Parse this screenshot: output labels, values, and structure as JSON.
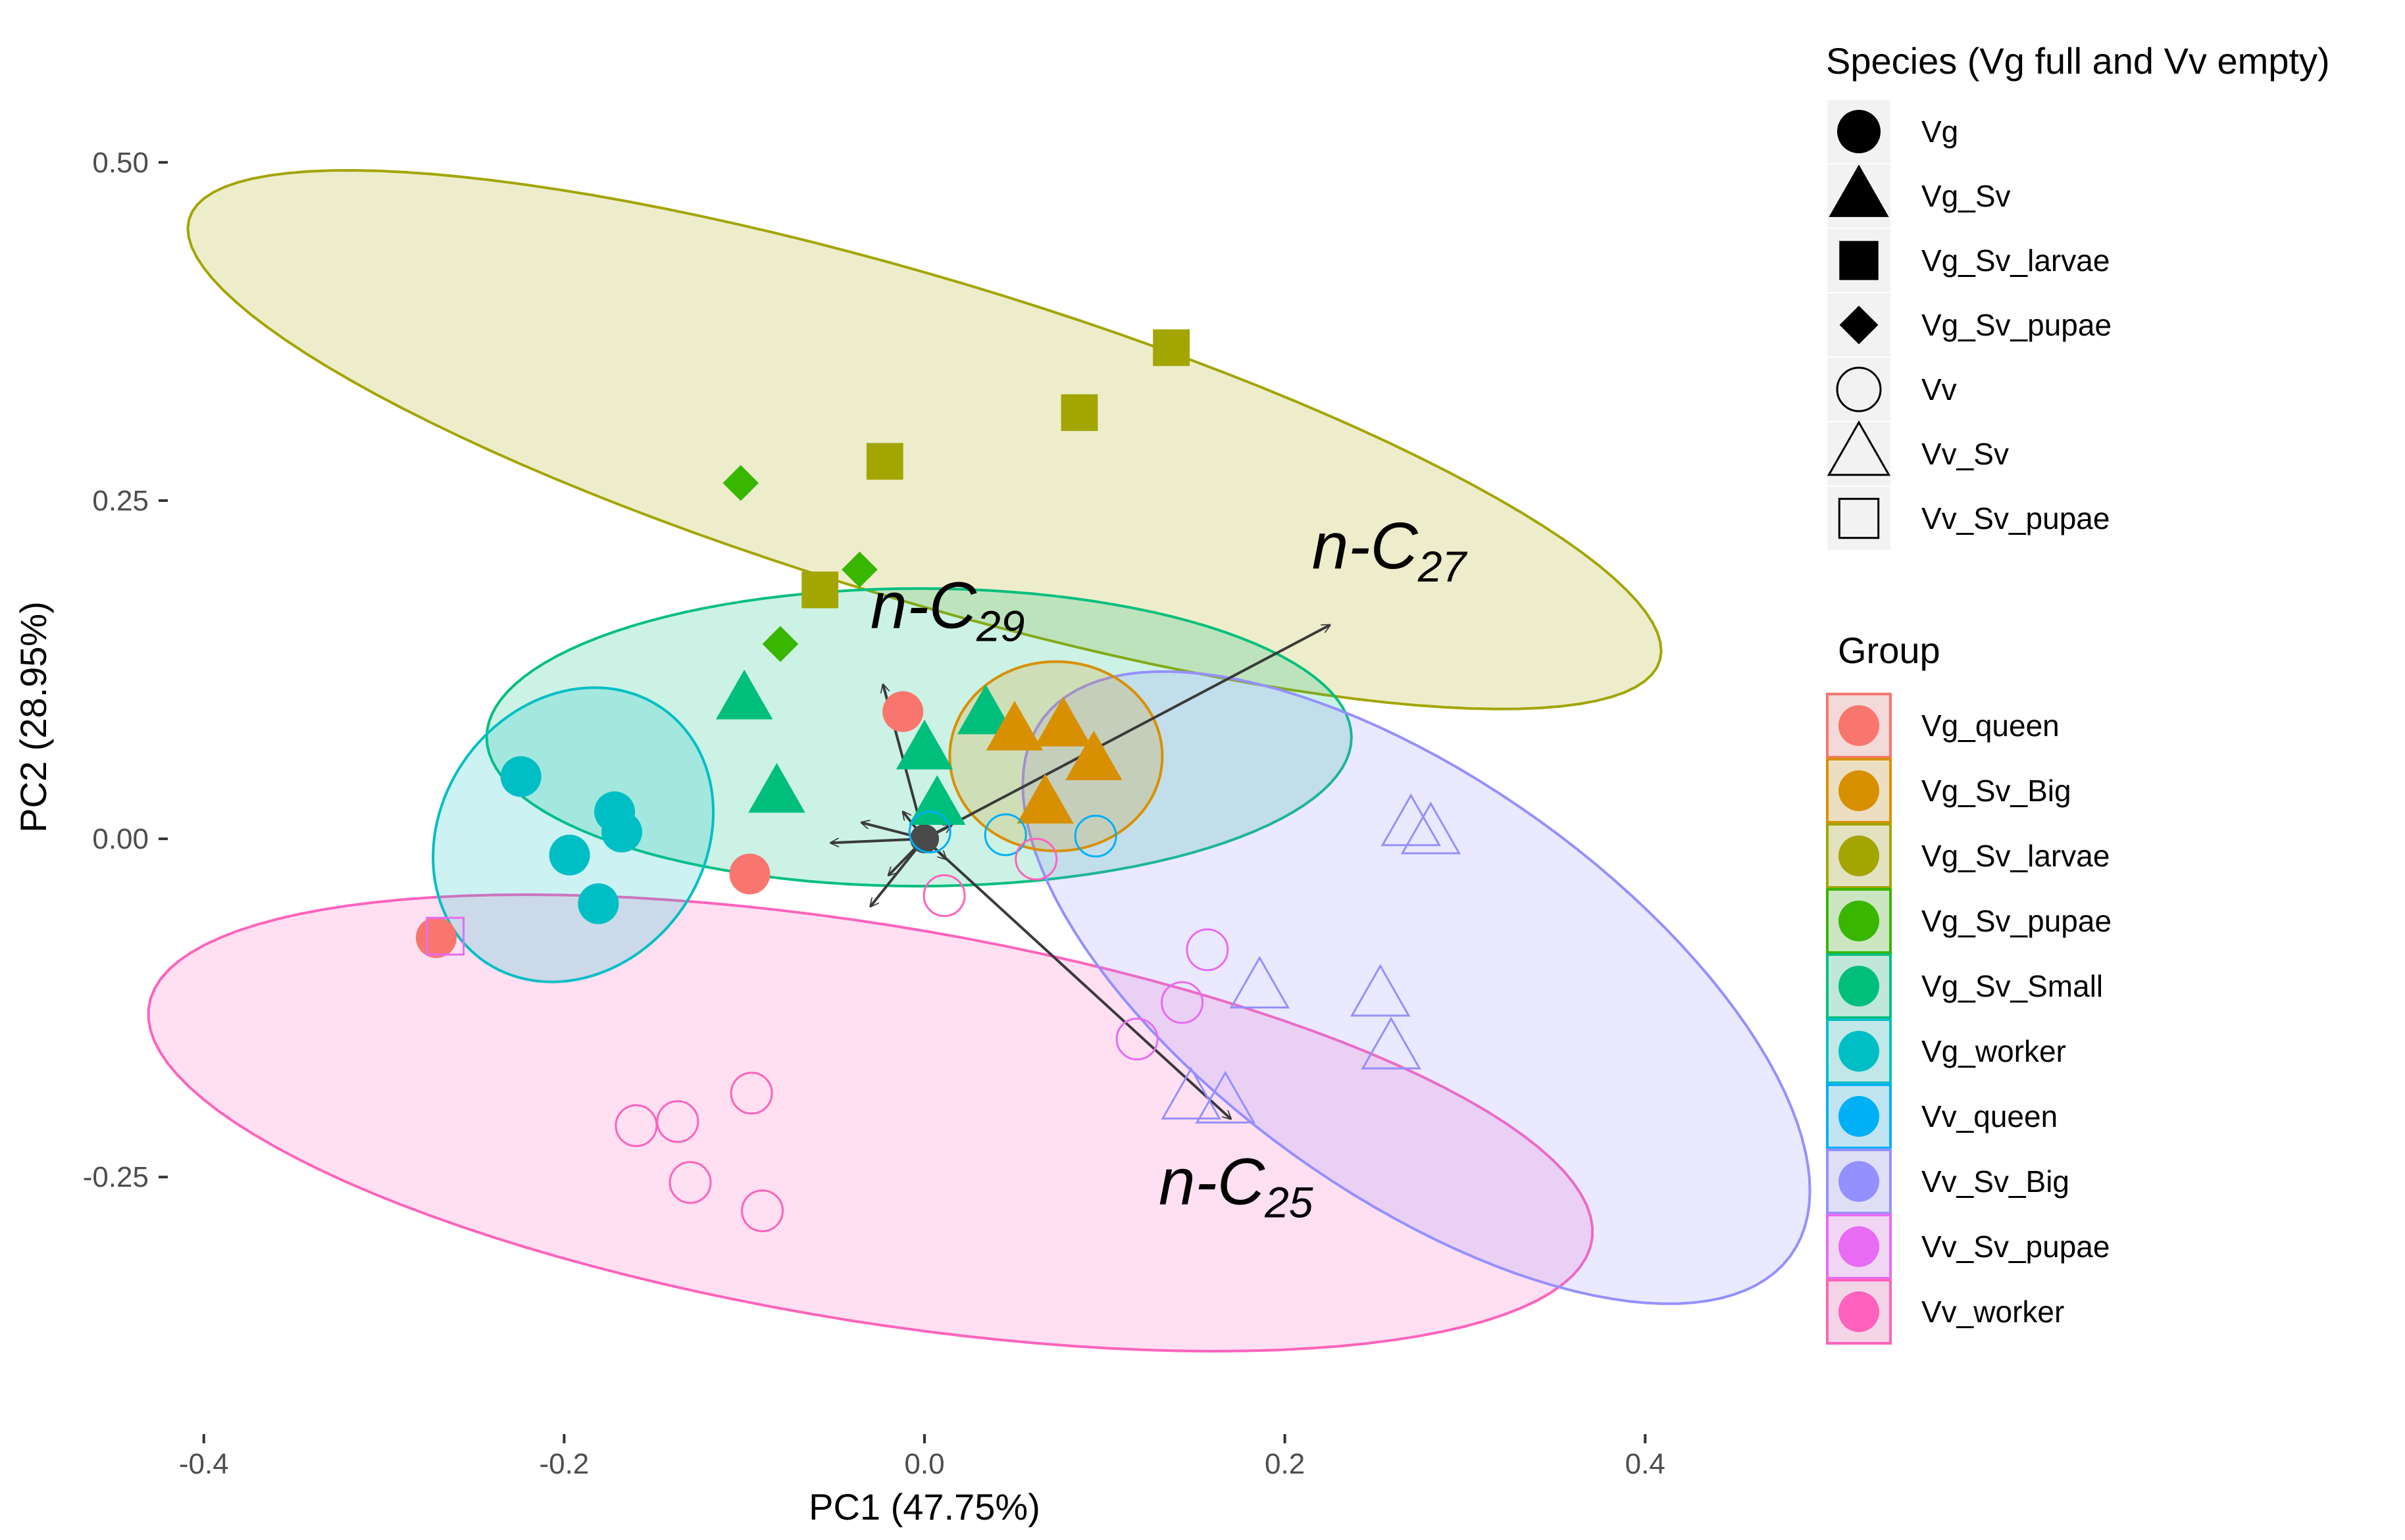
{
  "chart_data": {
    "type": "scatter",
    "subtype": "pca-biplot",
    "xlabel": "PC1 (47.75%)",
    "ylabel": "PC2 (28.95%)",
    "xlim": [
      -0.42,
      0.42
    ],
    "ylim": [
      -0.44,
      0.62
    ],
    "x_ticks": [
      {
        "value": -0.4,
        "label": "-0.4"
      },
      {
        "value": -0.2,
        "label": "-0.2"
      },
      {
        "value": 0.0,
        "label": "0.0"
      },
      {
        "value": 0.2,
        "label": "0.2"
      },
      {
        "value": 0.4,
        "label": "0.4"
      }
    ],
    "y_ticks": [
      {
        "value": 0.5,
        "label": "0.50"
      },
      {
        "value": 0.25,
        "label": "0.25"
      },
      {
        "value": 0.0,
        "label": "0.00"
      },
      {
        "value": -0.25,
        "label": "-0.25"
      }
    ],
    "grid": false,
    "legend_species": {
      "title": "Species (Vg full and Vv empty)",
      "entries": [
        {
          "label": "Vg",
          "shape": "circle",
          "filled": true
        },
        {
          "label": "Vg_Sv",
          "shape": "triangle",
          "filled": true
        },
        {
          "label": "Vg_Sv_larvae",
          "shape": "square",
          "filled": true
        },
        {
          "label": "Vg_Sv_pupae",
          "shape": "diamond",
          "filled": true
        },
        {
          "label": "Vv",
          "shape": "circle",
          "filled": false
        },
        {
          "label": "Vv_Sv",
          "shape": "triangle",
          "filled": false
        },
        {
          "label": "Vv_Sv_pupae",
          "shape": "square",
          "filled": false
        }
      ]
    },
    "legend_group": {
      "title": "Group",
      "entries": [
        {
          "label": "Vg_queen",
          "color": "#F8766D"
        },
        {
          "label": "Vg_Sv_Big",
          "color": "#D89000"
        },
        {
          "label": "Vg_Sv_larvae",
          "color": "#A3A500"
        },
        {
          "label": "Vg_Sv_pupae",
          "color": "#39B600"
        },
        {
          "label": "Vg_Sv_Small",
          "color": "#00BF7D"
        },
        {
          "label": "Vg_worker",
          "color": "#00BFC4"
        },
        {
          "label": "Vv_queen",
          "color": "#00B0F6"
        },
        {
          "label": "Vv_Sv_Big",
          "color": "#9590FF"
        },
        {
          "label": "Vv_Sv_pupae",
          "color": "#E76BF3"
        },
        {
          "label": "Vv_worker",
          "color": "#FF62BC"
        }
      ]
    },
    "ellipses": [
      {
        "group": "Vg_Sv_larvae",
        "color": "#A3A500",
        "cx": 0.0,
        "cy": 0.295,
        "rx": 0.44,
        "ry": 0.115,
        "angle_deg": -22.5
      },
      {
        "group": "Vv_worker",
        "color": "#FF62BC",
        "cx": -0.03,
        "cy": -0.21,
        "rx": 0.41,
        "ry": 0.145,
        "angle_deg": -13
      },
      {
        "group": "Vg_Sv_Small",
        "color": "#00BF7D",
        "cx": -0.003,
        "cy": 0.075,
        "rx": 0.24,
        "ry": 0.11,
        "angle_deg": 0
      },
      {
        "group": "Vv_Sv_Big",
        "color": "#9590FF",
        "cx": 0.273,
        "cy": -0.11,
        "rx": 0.29,
        "ry": 0.135,
        "angle_deg": -48
      },
      {
        "group": "Vg_worker",
        "color": "#00BFC4",
        "cx": -0.195,
        "cy": 0.003,
        "rx": 0.076,
        "ry": 0.11,
        "angle_deg": -12
      },
      {
        "group": "Vg_Sv_Big",
        "color": "#D89000",
        "cx": 0.073,
        "cy": 0.061,
        "rx": 0.059,
        "ry": 0.07,
        "angle_deg": 0
      }
    ],
    "points": [
      {
        "group": "Vg_Sv_larvae",
        "shape": "square",
        "filled": true,
        "x": 0.137,
        "y": 0.363
      },
      {
        "group": "Vg_Sv_larvae",
        "shape": "square",
        "filled": true,
        "x": 0.086,
        "y": 0.315
      },
      {
        "group": "Vg_Sv_larvae",
        "shape": "square",
        "filled": true,
        "x": -0.022,
        "y": 0.279
      },
      {
        "group": "Vg_Sv_larvae",
        "shape": "square",
        "filled": true,
        "x": -0.058,
        "y": 0.184
      },
      {
        "group": "Vg_Sv_pupae",
        "shape": "diamond",
        "filled": true,
        "x": -0.102,
        "y": 0.263
      },
      {
        "group": "Vg_Sv_pupae",
        "shape": "diamond",
        "filled": true,
        "x": -0.036,
        "y": 0.199
      },
      {
        "group": "Vg_Sv_pupae",
        "shape": "diamond",
        "filled": true,
        "x": -0.08,
        "y": 0.144
      },
      {
        "group": "Vg_Sv_Small",
        "shape": "triangle",
        "filled": true,
        "x": -0.1,
        "y": 0.103
      },
      {
        "group": "Vg_Sv_Small",
        "shape": "triangle",
        "filled": true,
        "x": -0.082,
        "y": 0.034
      },
      {
        "group": "Vg_Sv_Small",
        "shape": "triangle",
        "filled": true,
        "x": 0.0,
        "y": 0.066
      },
      {
        "group": "Vg_Sv_Small",
        "shape": "triangle",
        "filled": true,
        "x": 0.034,
        "y": 0.092
      },
      {
        "group": "Vg_Sv_Small",
        "shape": "triangle",
        "filled": true,
        "x": 0.007,
        "y": 0.025
      },
      {
        "group": "Vg_Sv_Big",
        "shape": "triangle",
        "filled": true,
        "x": 0.05,
        "y": 0.08
      },
      {
        "group": "Vg_Sv_Big",
        "shape": "triangle",
        "filled": true,
        "x": 0.077,
        "y": 0.083
      },
      {
        "group": "Vg_Sv_Big",
        "shape": "triangle",
        "filled": true,
        "x": 0.094,
        "y": 0.058
      },
      {
        "group": "Vg_Sv_Big",
        "shape": "triangle",
        "filled": true,
        "x": 0.067,
        "y": 0.026
      },
      {
        "group": "Vg_queen",
        "shape": "circle",
        "filled": true,
        "x": -0.012,
        "y": 0.094
      },
      {
        "group": "Vg_queen",
        "shape": "circle",
        "filled": true,
        "x": -0.097,
        "y": -0.026
      },
      {
        "group": "Vg_queen",
        "shape": "circle",
        "filled": true,
        "x": -0.271,
        "y": -0.073
      },
      {
        "group": "Vg_worker",
        "shape": "circle",
        "filled": true,
        "x": -0.224,
        "y": 0.046
      },
      {
        "group": "Vg_worker",
        "shape": "circle",
        "filled": true,
        "x": -0.172,
        "y": 0.02
      },
      {
        "group": "Vg_worker",
        "shape": "circle",
        "filled": true,
        "x": -0.168,
        "y": 0.005
      },
      {
        "group": "Vg_worker",
        "shape": "circle",
        "filled": true,
        "x": -0.197,
        "y": -0.012
      },
      {
        "group": "Vg_worker",
        "shape": "circle",
        "filled": true,
        "x": -0.181,
        "y": -0.048
      },
      {
        "group": "Vv_queen",
        "shape": "circle",
        "filled": false,
        "x": 0.045,
        "y": 0.003
      },
      {
        "group": "Vv_queen",
        "shape": "circle",
        "filled": false,
        "x": 0.095,
        "y": 0.002
      },
      {
        "group": "Vv_queen",
        "shape": "circle",
        "filled": false,
        "x": 0.003,
        "y": 0.005
      },
      {
        "group": "Vv_worker",
        "shape": "circle",
        "filled": false,
        "x": 0.062,
        "y": -0.015
      },
      {
        "group": "Vv_worker",
        "shape": "circle",
        "filled": false,
        "x": 0.011,
        "y": -0.042
      },
      {
        "group": "Vv_worker",
        "shape": "circle",
        "filled": false,
        "x": -0.16,
        "y": -0.212
      },
      {
        "group": "Vv_worker",
        "shape": "circle",
        "filled": false,
        "x": -0.137,
        "y": -0.209
      },
      {
        "group": "Vv_worker",
        "shape": "circle",
        "filled": false,
        "x": -0.096,
        "y": -0.188
      },
      {
        "group": "Vv_worker",
        "shape": "circle",
        "filled": false,
        "x": -0.13,
        "y": -0.254
      },
      {
        "group": "Vv_worker",
        "shape": "circle",
        "filled": false,
        "x": -0.09,
        "y": -0.275
      },
      {
        "group": "Vv_Sv_pupae",
        "shape": "circle",
        "filled": false,
        "x": 0.157,
        "y": -0.082
      },
      {
        "group": "Vv_Sv_pupae",
        "shape": "circle",
        "filled": false,
        "x": 0.143,
        "y": -0.121
      },
      {
        "group": "Vv_Sv_pupae",
        "shape": "circle",
        "filled": false,
        "x": 0.118,
        "y": -0.148
      },
      {
        "group": "Vv_Sv_pupae",
        "shape": "square",
        "filled": false,
        "x": -0.266,
        "y": -0.072
      },
      {
        "group": "Vv_Sv_Big",
        "shape": "triangle",
        "filled": false,
        "x": 0.27,
        "y": 0.01
      },
      {
        "group": "Vv_Sv_Big",
        "shape": "triangle",
        "filled": false,
        "x": 0.281,
        "y": 0.004
      },
      {
        "group": "Vv_Sv_Big",
        "shape": "triangle",
        "filled": false,
        "x": 0.186,
        "y": -0.11
      },
      {
        "group": "Vv_Sv_Big",
        "shape": "triangle",
        "filled": false,
        "x": 0.253,
        "y": -0.116
      },
      {
        "group": "Vv_Sv_Big",
        "shape": "triangle",
        "filled": false,
        "x": 0.259,
        "y": -0.155
      },
      {
        "group": "Vv_Sv_Big",
        "shape": "triangle",
        "filled": false,
        "x": 0.148,
        "y": -0.192
      },
      {
        "group": "Vv_Sv_Big",
        "shape": "triangle",
        "filled": false,
        "x": 0.167,
        "y": -0.195
      }
    ],
    "loadings": [
      {
        "label": "n-C27",
        "x": 0.225,
        "y": 0.158,
        "labeled": true
      },
      {
        "label": "n-C29",
        "x": -0.023,
        "y": 0.114,
        "labeled": true
      },
      {
        "label": "n-C25",
        "x": 0.17,
        "y": -0.207,
        "labeled": true
      },
      {
        "label": "",
        "x": -0.052,
        "y": -0.003,
        "labeled": false
      },
      {
        "label": "",
        "x": -0.03,
        "y": -0.05,
        "labeled": false
      },
      {
        "label": "",
        "x": -0.02,
        "y": -0.027,
        "labeled": false
      },
      {
        "label": "",
        "x": -0.035,
        "y": 0.012,
        "labeled": false
      },
      {
        "label": "",
        "x": 0.012,
        "y": -0.015,
        "labeled": false
      },
      {
        "label": "",
        "x": -0.012,
        "y": 0.02,
        "labeled": false
      },
      {
        "label": "",
        "x": 0.015,
        "y": 0.01,
        "labeled": false
      }
    ],
    "loading_labels": [
      {
        "prefix": "n-C",
        "sub": "27",
        "x": 0.215,
        "y": 0.2
      },
      {
        "prefix": "n-C",
        "sub": "29",
        "x": -0.03,
        "y": 0.156
      },
      {
        "prefix": "n-C",
        "sub": "25",
        "x": 0.13,
        "y": -0.27
      }
    ]
  }
}
